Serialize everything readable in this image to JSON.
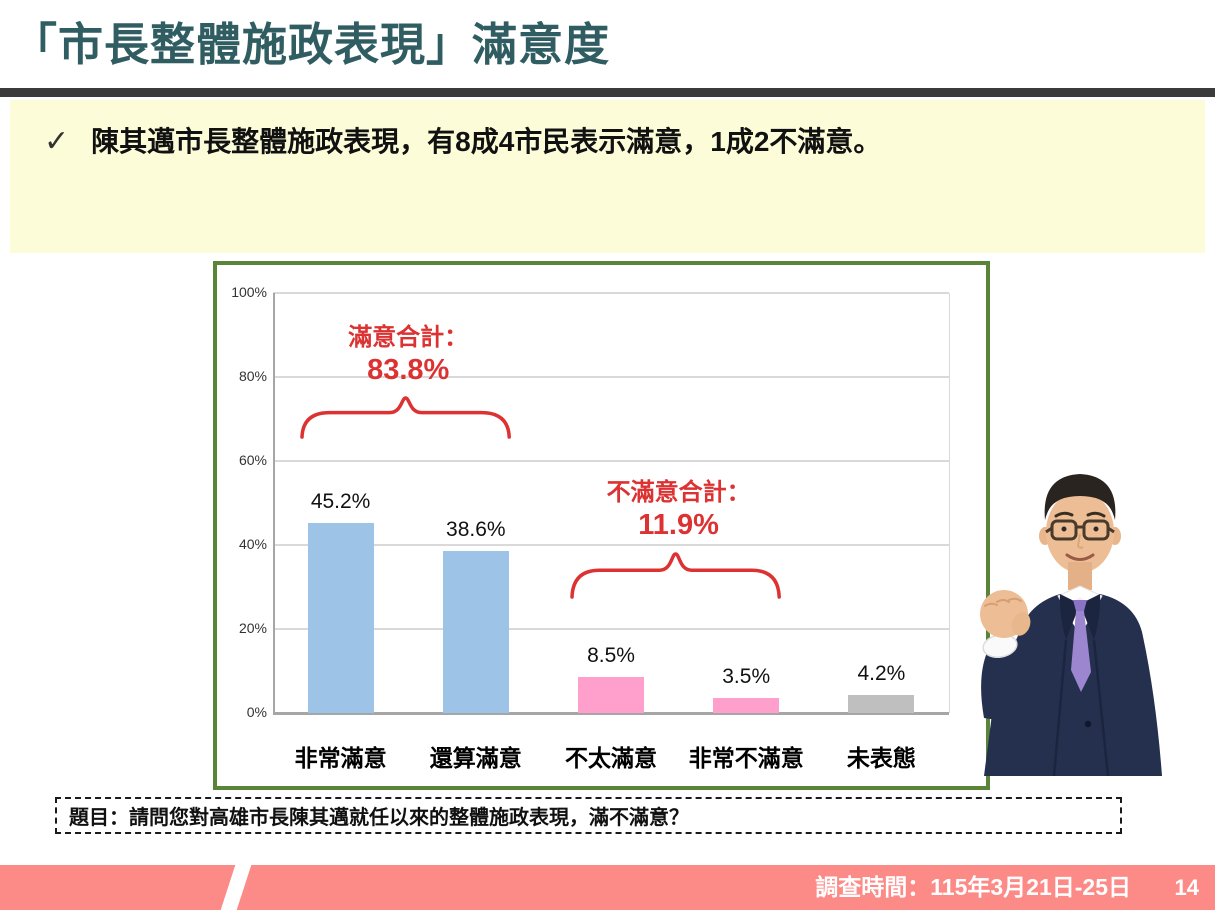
{
  "header": {
    "title": "「市長整體施政表現」滿意度"
  },
  "summary": {
    "check_icon": "✓",
    "text": "陳其邁市長整體施政表現，有8成4市民表示滿意，1成2不滿意。"
  },
  "question": {
    "text": "題目：請問您對高雄市長陳其邁就任以來的整體施政表現，滿不滿意？"
  },
  "footer": {
    "survey_time": "調查時間：115年3月21日-25日",
    "page_number": "14"
  },
  "colors": {
    "title": "#2F5D62",
    "title_rule": "#3B3B3B",
    "summary_bg": "#FCFCD9",
    "chart_border_green": "#5A8538",
    "bar_blue": "#9DC3E6",
    "bar_pink": "#FF9FCB",
    "bar_gray": "#BFBFBF",
    "annotation_red": "#DC3232",
    "footer_pink": "#FC8B88"
  },
  "chart_data": {
    "type": "bar",
    "title": "",
    "xlabel": "",
    "ylabel": "",
    "categories": [
      "非常滿意",
      "還算滿意",
      "不太滿意",
      "非常不滿意",
      "未表態"
    ],
    "values": [
      45.2,
      38.6,
      8.5,
      3.5,
      4.2
    ],
    "value_labels": [
      "45.2%",
      "38.6%",
      "8.5%",
      "3.5%",
      "4.2%"
    ],
    "bar_colors": [
      "#9DC3E6",
      "#9DC3E6",
      "#FF9FCB",
      "#FF9FCB",
      "#BFBFBF"
    ],
    "ylim": [
      0,
      100
    ],
    "y_ticks": [
      0,
      20,
      40,
      60,
      80,
      100
    ],
    "y_tick_labels": [
      "0%",
      "20%",
      "40%",
      "60%",
      "80%",
      "100%"
    ],
    "grid": true,
    "legend": false,
    "annotations": [
      {
        "label": "滿意合計：",
        "value": "83.8%",
        "sum_of_bars": [
          0,
          1
        ],
        "color": "#DC3232"
      },
      {
        "label": "不滿意合計：",
        "value": "11.9%",
        "sum_of_bars": [
          2,
          3
        ],
        "color": "#DC3232"
      }
    ]
  }
}
